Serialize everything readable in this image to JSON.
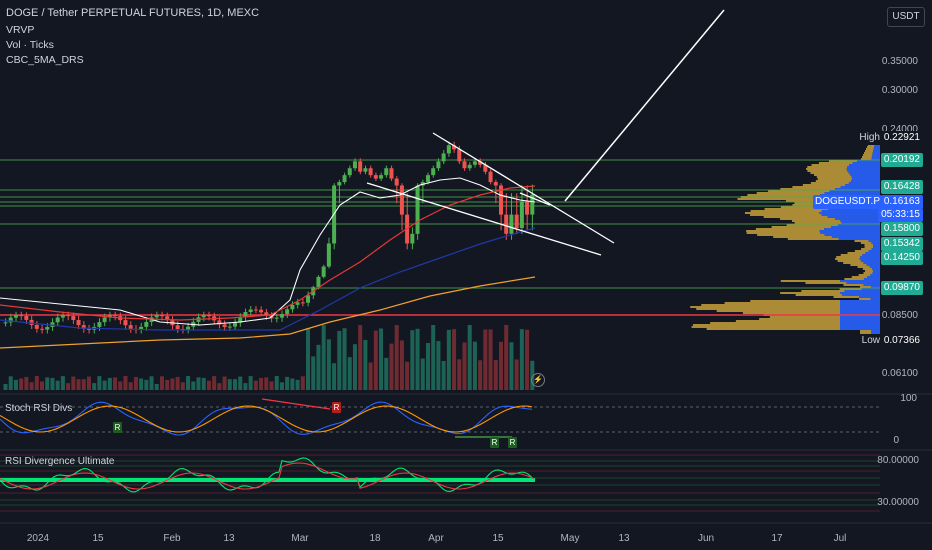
{
  "symbol": {
    "title": "DOGE / Tether PERPETUAL FUTURES, 1D, MEXC",
    "indicators": [
      "VRVP",
      "Vol · Ticks",
      "CBC_5MA_DRS"
    ]
  },
  "currency_button": "USDT",
  "price_axis": {
    "ticks": [
      "0.35000",
      "0.30000",
      "0.24000",
      "0.20192",
      "0.16428",
      "0.15800",
      "0.15342",
      "0.14250",
      "0.09870",
      "0.08500",
      "0.07366",
      "0.06100"
    ],
    "plain_ticks": [
      "0.35000",
      "0.30000",
      "0.24000",
      "0.08500",
      "0.06100"
    ],
    "tags": {
      "high": {
        "label": "High",
        "value": "0.22921",
        "color": "#131722"
      },
      "level_20192": {
        "value": "0.20192",
        "color": "#22ab94"
      },
      "level_16428": {
        "value": "0.16428",
        "color": "#22ab94"
      },
      "symbol": {
        "label": "DOGEUSDT.P",
        "value": "0.16163",
        "countdown": "05:33:15",
        "color": "#2962ff"
      },
      "level_15800": {
        "value": "0.15800",
        "color": "#22ab94"
      },
      "level_15342": {
        "value": "0.15342",
        "color": "#22ab94"
      },
      "level_14250": {
        "value": "0.14250",
        "color": "#22ab94"
      },
      "level_09870": {
        "value": "0.09870",
        "color": "#22ab94"
      },
      "low": {
        "label": "Low",
        "value": "0.07366",
        "color": "#131722"
      }
    }
  },
  "time_axis": [
    "2024",
    "15",
    "Feb",
    "13",
    "Mar",
    "18",
    "Apr",
    "15",
    "May",
    "13",
    "Jun",
    "17",
    "Jul"
  ],
  "panes": {
    "stoch": {
      "title": "Stoch RSI Divs",
      "ticks": [
        "100",
        "0"
      ],
      "marks": [
        "R",
        "R",
        "R",
        "R"
      ]
    },
    "rsi": {
      "title": "RSI Divergence Ultimate",
      "ticks": [
        "80.00000",
        "30.00000"
      ]
    }
  },
  "colors": {
    "up": "#26a69a",
    "up_bright": "#4caf50",
    "down": "#ef5350",
    "background": "#131722",
    "level_line": "#4caf50",
    "ema_white": "#ffffff",
    "ema_red": "#e53935",
    "ema_blue": "#1e3aa8",
    "ema_orange": "#f0a030",
    "vrvp_blue": "#2962ff",
    "vrvp_gold": "#c8a03a"
  },
  "icons": [
    "alert-lightning-icon"
  ]
}
